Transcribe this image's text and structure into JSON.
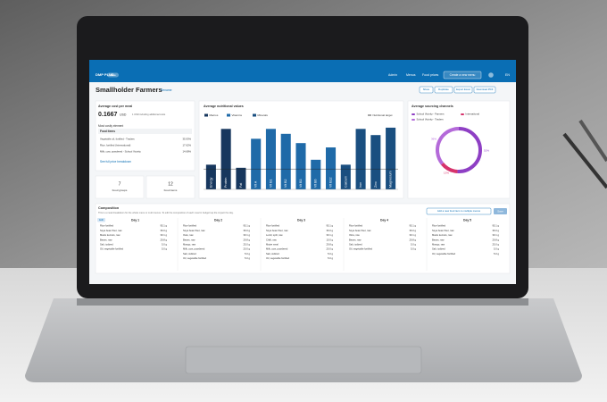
{
  "header": {
    "logo": "DMP PLUS",
    "badge": "Beta",
    "nav": [
      "Admin",
      "Menus",
      "Food prices"
    ],
    "cta": "Create a new menu",
    "lang": "EN"
  },
  "menu": {
    "title": "Smallholder Farmers",
    "edit": "Rename",
    "actions": [
      "Share",
      "Duplicate",
      "Export Excel",
      "Download PDF"
    ]
  },
  "cost": {
    "title": "Average cost per meal",
    "value": 0.1667,
    "unit": "USD",
    "note": "1 USD including additional costs",
    "costly_title": "Most costly element",
    "costly_header": "Food items",
    "costly_rows": [
      [
        "Vegetable oil, fortified - Traders",
        "35.93%"
      ],
      [
        "Rice, fortified (International)",
        "17.62%"
      ],
      [
        "Milk, cow, powdered - School Vicinity",
        "14.68%"
      ]
    ],
    "link": "See full price breakdown"
  },
  "counts": [
    {
      "value": 7,
      "label": "Food groups"
    },
    {
      "value": 12,
      "label": "Food items"
    }
  ],
  "chart_data": [
    {
      "type": "bar",
      "title": "Average nutritional values",
      "categories": [
        "Energy",
        "Protein",
        "Fat",
        "Vit A",
        "Vit B1",
        "Vit B2",
        "Vit B3",
        "Vit B6",
        "Vit B12",
        "Calcium",
        "Iron",
        "Zinc",
        "Magnesium"
      ],
      "series": [
        {
          "name": "Macros",
          "color": "#17375e",
          "values": [
            40,
            98,
            35,
            null,
            null,
            null,
            null,
            null,
            null,
            null,
            null,
            null,
            null
          ]
        },
        {
          "name": "Vitamins",
          "color": "#1f6aa8",
          "values": [
            null,
            null,
            null,
            82,
            98,
            90,
            75,
            48,
            68,
            null,
            null,
            null,
            null
          ]
        },
        {
          "name": "Minerals",
          "color": "#1a4f80",
          "values": [
            null,
            null,
            null,
            null,
            null,
            null,
            null,
            null,
            null,
            40,
            98,
            88,
            100
          ]
        }
      ],
      "target_name": "Nutritional target",
      "target": 33,
      "ylim": [
        0,
        110
      ],
      "grid": false
    },
    {
      "type": "pie",
      "title": "Average sourcing channels",
      "categories": [
        "School Vicinity - Farmers",
        "International",
        "School Vicinity - Traders"
      ],
      "values": [
        51,
        13,
        36
      ],
      "value_labels": [
        "51%",
        "13%",
        "36%"
      ],
      "colors": [
        "#8e3fc4",
        "#d6336c",
        "#b46ad9"
      ]
    }
  ],
  "composition": {
    "title": "Composition",
    "subtitle": "This is a meal breakdown for the whole menu or multi menus. To edit the composition of each meal in budget tap the impact the day.",
    "add_button": "Add a new food item to multiple menus",
    "save": "Save",
    "tag": "Edit",
    "days": [
      {
        "name": "Day 1",
        "items": [
          [
            "Rice fortified",
            "95.1 g"
          ],
          [
            "Soya bean flour, raw",
            "36.0 g"
          ],
          [
            "Maize kernels, raw",
            "30.1 g"
          ],
          [
            "Beans, raw",
            "29.8 g"
          ],
          [
            "Salt, iodized",
            "5.0 g"
          ],
          [
            "Oil, vegetable fortified",
            "5.0 g"
          ]
        ]
      },
      {
        "name": "Day 2",
        "items": [
          [
            "Rice fortified",
            "95.1 g"
          ],
          [
            "Soya bean flour, raw",
            "36.0 g"
          ],
          [
            "Oats, raw",
            "30.1 g"
          ],
          [
            "Beans, raw",
            "29.8 g"
          ],
          [
            "Mango, raw",
            "25.0 g"
          ],
          [
            "Milk, cow, powdered",
            "20.0 g"
          ],
          [
            "Salt, iodized",
            "5.0 g"
          ],
          [
            "Oil, vegetable fortified",
            "5.0 g"
          ]
        ]
      },
      {
        "name": "Day 3",
        "items": [
          [
            "Rice fortified",
            "95.1 g"
          ],
          [
            "Soya bean flour, raw",
            "36.0 g"
          ],
          [
            "Lentil, split, raw",
            "30.1 g"
          ],
          [
            "Chilli, raw",
            "10.0 g"
          ],
          [
            "Maize meal",
            "29.8 g"
          ],
          [
            "Milk, cow, powdered",
            "20.0 g"
          ],
          [
            "Salt, iodized",
            "5.0 g"
          ],
          [
            "Oil, vegetable fortified",
            "5.0 g"
          ]
        ]
      },
      {
        "name": "Day 4",
        "items": [
          [
            "Rice fortified",
            "95.1 g"
          ],
          [
            "Soya bean flour, raw",
            "36.0 g"
          ],
          [
            "Okra, raw",
            "30.1 g"
          ],
          [
            "Beans, raw",
            "29.8 g"
          ],
          [
            "Salt, iodized",
            "5.0 g"
          ],
          [
            "Oil, vegetable fortified",
            "5.0 g"
          ]
        ]
      },
      {
        "name": "Day 5",
        "items": [
          [
            "Rice fortified",
            "95.1 g"
          ],
          [
            "Soya bean flour, raw",
            "36.0 g"
          ],
          [
            "Maize kernels, raw",
            "30.1 g"
          ],
          [
            "Beans, raw",
            "29.8 g"
          ],
          [
            "Mango, raw",
            "25.0 g"
          ],
          [
            "Salt, iodized",
            "5.0 g"
          ],
          [
            "Oil, vegetable fortified",
            "5.0 g"
          ]
        ]
      }
    ]
  }
}
